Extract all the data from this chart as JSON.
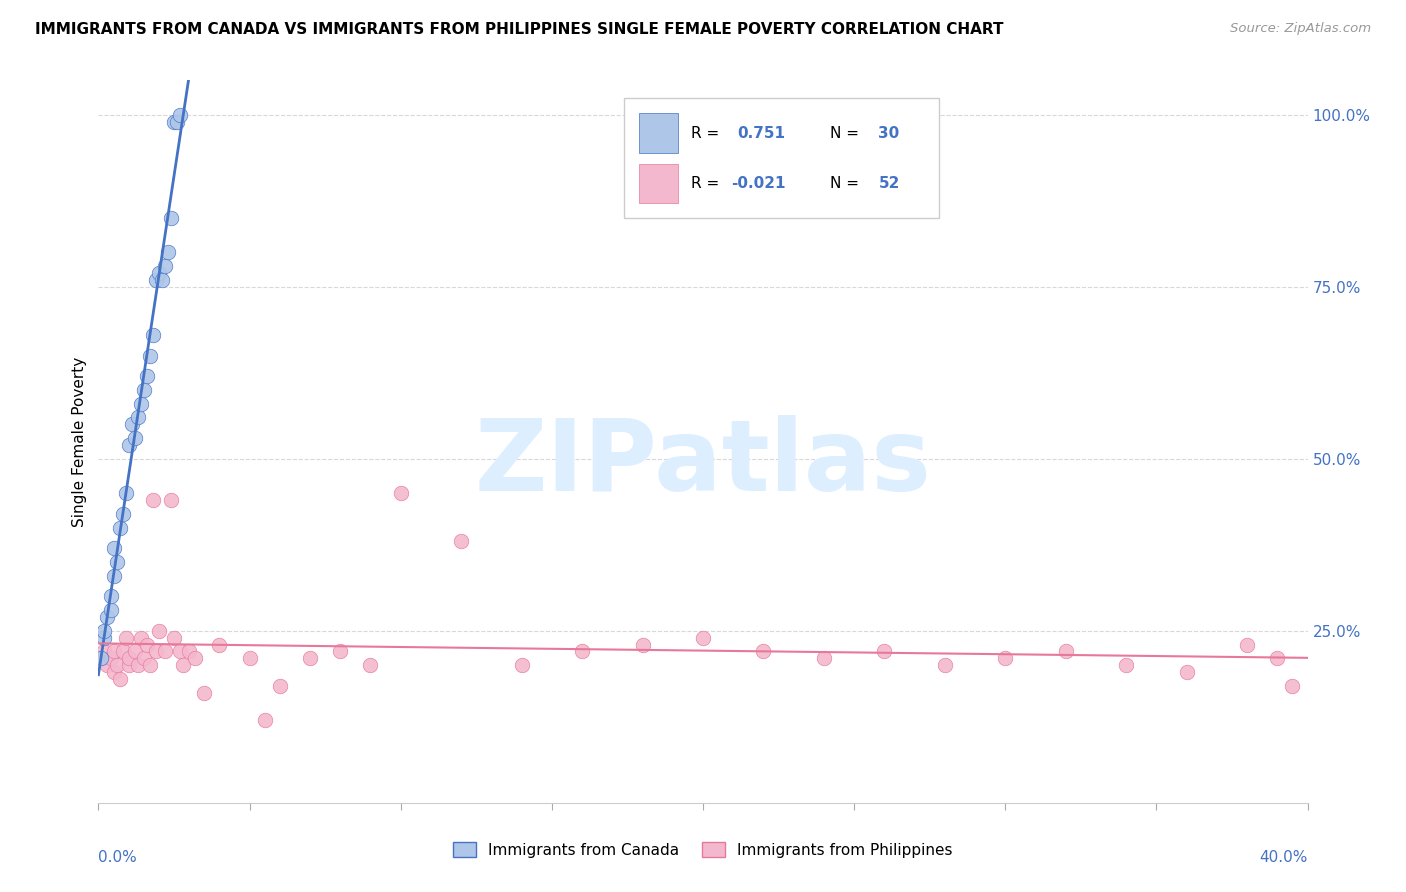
{
  "title": "IMMIGRANTS FROM CANADA VS IMMIGRANTS FROM PHILIPPINES SINGLE FEMALE POVERTY CORRELATION CHART",
  "source": "Source: ZipAtlas.com",
  "ylabel": "Single Female Poverty",
  "canada_R": 0.751,
  "canada_N": 30,
  "philippines_R": -0.021,
  "philippines_N": 52,
  "canada_color": "#aec6e8",
  "canada_line_color": "#4472c4",
  "philippines_color": "#f4b8ce",
  "philippines_line_color": "#e8789a",
  "canada_scatter_x": [
    0.001,
    0.002,
    0.002,
    0.003,
    0.004,
    0.004,
    0.005,
    0.005,
    0.006,
    0.007,
    0.008,
    0.009,
    0.01,
    0.011,
    0.012,
    0.013,
    0.014,
    0.015,
    0.016,
    0.017,
    0.018,
    0.019,
    0.02,
    0.021,
    0.022,
    0.023,
    0.024,
    0.025,
    0.026,
    0.027
  ],
  "canada_scatter_y": [
    0.21,
    0.24,
    0.25,
    0.27,
    0.28,
    0.3,
    0.33,
    0.37,
    0.35,
    0.4,
    0.42,
    0.45,
    0.52,
    0.55,
    0.53,
    0.56,
    0.58,
    0.6,
    0.62,
    0.65,
    0.68,
    0.76,
    0.77,
    0.76,
    0.78,
    0.8,
    0.85,
    0.99,
    0.99,
    1.0
  ],
  "philippines_scatter_x": [
    0.002,
    0.003,
    0.004,
    0.005,
    0.005,
    0.006,
    0.007,
    0.008,
    0.009,
    0.01,
    0.01,
    0.012,
    0.013,
    0.014,
    0.015,
    0.016,
    0.017,
    0.018,
    0.019,
    0.02,
    0.022,
    0.024,
    0.025,
    0.027,
    0.028,
    0.03,
    0.032,
    0.035,
    0.04,
    0.05,
    0.055,
    0.06,
    0.07,
    0.08,
    0.09,
    0.1,
    0.12,
    0.14,
    0.16,
    0.18,
    0.2,
    0.22,
    0.24,
    0.26,
    0.28,
    0.3,
    0.32,
    0.34,
    0.36,
    0.38,
    0.39,
    0.395
  ],
  "philippines_scatter_y": [
    0.22,
    0.2,
    0.21,
    0.19,
    0.22,
    0.2,
    0.18,
    0.22,
    0.24,
    0.2,
    0.21,
    0.22,
    0.2,
    0.24,
    0.21,
    0.23,
    0.2,
    0.44,
    0.22,
    0.25,
    0.22,
    0.44,
    0.24,
    0.22,
    0.2,
    0.22,
    0.21,
    0.16,
    0.23,
    0.21,
    0.12,
    0.17,
    0.21,
    0.22,
    0.2,
    0.45,
    0.38,
    0.2,
    0.22,
    0.23,
    0.24,
    0.22,
    0.21,
    0.22,
    0.2,
    0.21,
    0.22,
    0.2,
    0.19,
    0.23,
    0.21,
    0.17
  ],
  "xlim": [
    0.0,
    0.4
  ],
  "ylim": [
    0.0,
    1.05
  ],
  "background_color": "#ffffff",
  "grid_color": "#d8d8d8",
  "watermark": "ZIPatlas",
  "watermark_color": "#ddeeff"
}
